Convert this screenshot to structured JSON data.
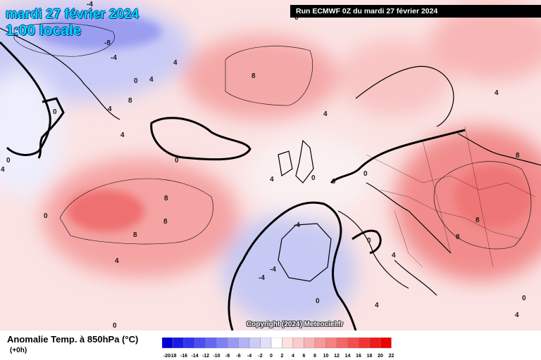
{
  "header": {
    "date": "mardi 27 février 2024",
    "time": "1:00 locale",
    "run": "Run ECMWF 0Z du mardi 27 février 2024"
  },
  "footer": {
    "variable": "Anomalie Temp. à 850hPa (°C)",
    "lead": "(+0h)",
    "copyright": "Copyright (2024) Meteociel.fr"
  },
  "legend": {
    "ticks": [
      "-20",
      "-18",
      "-16",
      "-14",
      "-12",
      "-10",
      "-8",
      "-6",
      "-4",
      "-2",
      "0",
      "2",
      "4",
      "6",
      "8",
      "10",
      "12",
      "14",
      "16",
      "18",
      "20",
      "22"
    ],
    "colors": [
      "#0000d8",
      "#1a1ae6",
      "#3333f0",
      "#4d4df5",
      "#6666f5",
      "#8080f5",
      "#9999f5",
      "#b3b3f7",
      "#ccccf8",
      "#e0e0fa",
      "#ffffff",
      "#fde0e0",
      "#fccccc",
      "#fab3b3",
      "#f89999",
      "#f78080",
      "#f56666",
      "#f44d4d",
      "#f23333",
      "#f01a1a",
      "#ee0000"
    ]
  },
  "contour_labels": [
    "-4",
    "-8",
    "-4",
    "0",
    "4",
    "8",
    "4",
    "0",
    "4",
    "0",
    "8",
    "4",
    "0",
    "4",
    "8",
    "0",
    "8",
    "8",
    "4",
    "0",
    "0",
    "-4",
    "-4",
    "-4",
    "0",
    "4",
    "8",
    "4",
    "0",
    "0",
    "4",
    "0",
    "8",
    "8",
    "4",
    "0",
    "4",
    "0",
    "4"
  ]
}
